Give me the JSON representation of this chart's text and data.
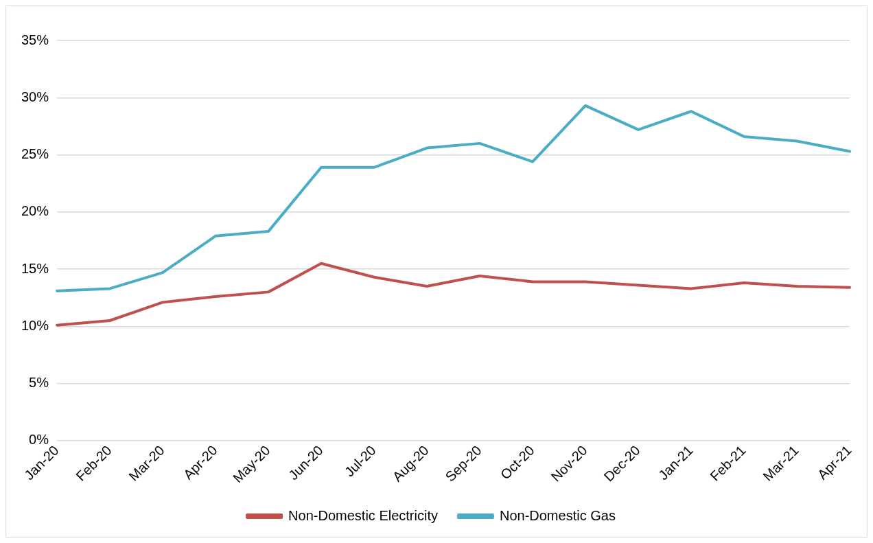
{
  "chart_data": {
    "type": "line",
    "categories": [
      "Jan-20",
      "Feb-20",
      "Mar-20",
      "Apr-20",
      "May-20",
      "Jun-20",
      "Jul-20",
      "Aug-20",
      "Sep-20",
      "Oct-20",
      "Nov-20",
      "Dec-20",
      "Jan-21",
      "Feb-21",
      "Mar-21",
      "Apr-21"
    ],
    "series": [
      {
        "name": "Non-Domestic Electricity",
        "color": "#c0504d",
        "values": [
          10.1,
          10.5,
          12.1,
          12.6,
          13.0,
          15.5,
          14.3,
          13.5,
          14.4,
          13.9,
          13.9,
          13.6,
          13.3,
          13.8,
          13.5,
          13.4
        ]
      },
      {
        "name": "Non-Domestic Gas",
        "color": "#4bacc6",
        "values": [
          13.1,
          13.3,
          14.7,
          17.9,
          18.3,
          23.9,
          23.9,
          25.6,
          26.0,
          24.4,
          29.3,
          27.2,
          28.8,
          26.6,
          26.2,
          25.3
        ]
      }
    ],
    "ylim": [
      0,
      35
    ],
    "yticks": [
      {
        "value": 0,
        "label": "0%"
      },
      {
        "value": 5,
        "label": "5%"
      },
      {
        "value": 10,
        "label": "10%"
      },
      {
        "value": 15,
        "label": "15%"
      },
      {
        "value": 20,
        "label": "20%"
      },
      {
        "value": 25,
        "label": "25%"
      },
      {
        "value": 30,
        "label": "30%"
      },
      {
        "value": 35,
        "label": "35%"
      }
    ],
    "grid": "y",
    "legend": "bottom",
    "marker": "none",
    "line_style": "solid"
  }
}
